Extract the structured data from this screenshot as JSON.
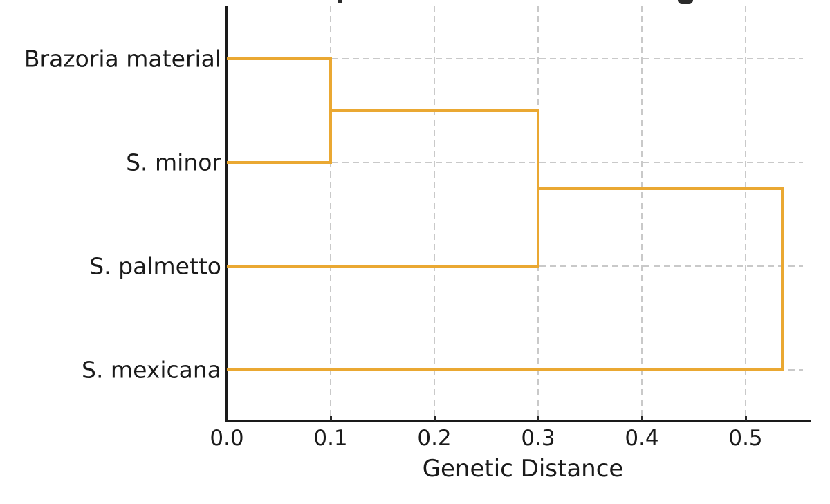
{
  "figure": {
    "background": "#ffffff",
    "axis_color": "#1a1a1a",
    "grid_color": "#c9c9c9",
    "tick_color": "#262626"
  },
  "chart_data": {
    "type": "dendrogram",
    "orientation": "horizontal",
    "xlabel": "Genetic Distance",
    "x_ticks": [
      "0.0",
      "0.1",
      "0.2",
      "0.3",
      "0.4",
      "0.5"
    ],
    "x_tick_values": [
      0,
      0.1,
      0.2,
      0.3,
      0.4,
      0.5
    ],
    "xlim": [
      0,
      0.56
    ],
    "grid": "dashed",
    "legend": "none",
    "link_color": "#EAA832",
    "leaves": [
      "Brazoria material",
      "S. minor",
      "S. palmetto",
      "S. mexicana"
    ],
    "merges": [
      {
        "id": "m1",
        "children": [
          "leaf0",
          "leaf1"
        ],
        "distance": 0.1
      },
      {
        "id": "m2",
        "children": [
          "m1",
          "leaf2"
        ],
        "distance": 0.3
      },
      {
        "id": "m3",
        "children": [
          "m2",
          "leaf3"
        ],
        "distance": 0.535
      }
    ]
  }
}
